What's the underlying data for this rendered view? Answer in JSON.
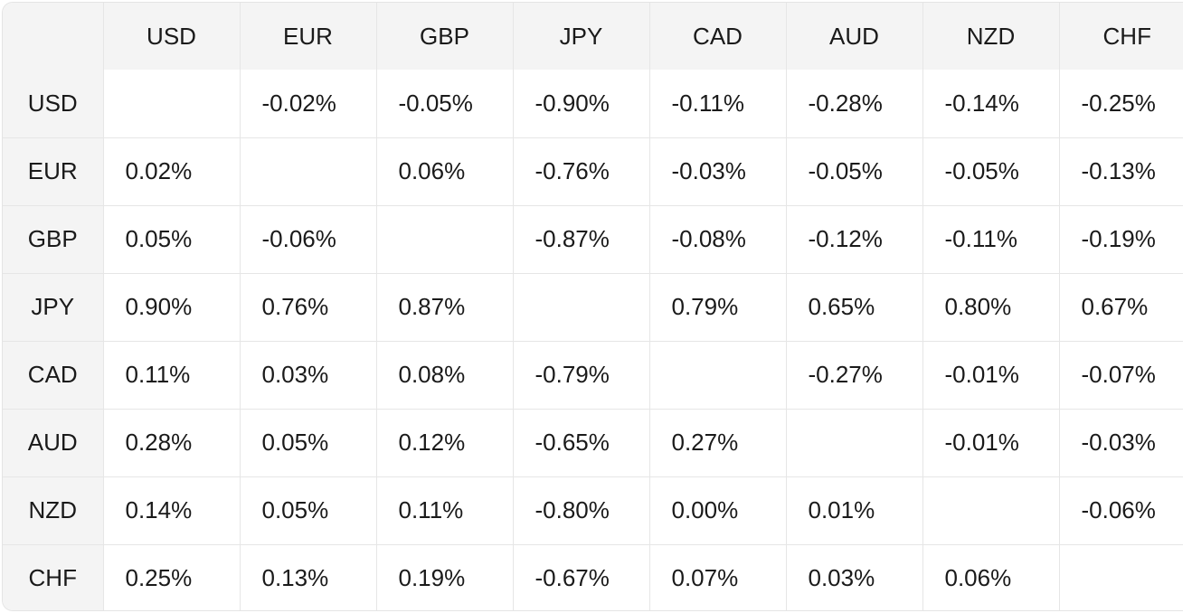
{
  "chart_data": {
    "type": "heatmap",
    "corner_label": "",
    "columns": [
      "USD",
      "EUR",
      "GBP",
      "JPY",
      "CAD",
      "AUD",
      "NZD",
      "CHF"
    ],
    "rows": [
      {
        "label": "USD",
        "cells": [
          "",
          "-0.02%",
          "-0.05%",
          "-0.90%",
          "-0.11%",
          "-0.28%",
          "-0.14%",
          "-0.25%"
        ]
      },
      {
        "label": "EUR",
        "cells": [
          "0.02%",
          "",
          "0.06%",
          "-0.76%",
          "-0.03%",
          "-0.05%",
          "-0.05%",
          "-0.13%"
        ]
      },
      {
        "label": "GBP",
        "cells": [
          "0.05%",
          "-0.06%",
          "",
          "-0.87%",
          "-0.08%",
          "-0.12%",
          "-0.11%",
          "-0.19%"
        ]
      },
      {
        "label": "JPY",
        "cells": [
          "0.90%",
          "0.76%",
          "0.87%",
          "",
          "0.79%",
          "0.65%",
          "0.80%",
          "0.67%"
        ]
      },
      {
        "label": "CAD",
        "cells": [
          "0.11%",
          "0.03%",
          "0.08%",
          "-0.79%",
          "",
          "-0.27%",
          "-0.01%",
          "-0.07%"
        ]
      },
      {
        "label": "AUD",
        "cells": [
          "0.28%",
          "0.05%",
          "0.12%",
          "-0.65%",
          "0.27%",
          "",
          "-0.01%",
          "-0.03%"
        ]
      },
      {
        "label": "NZD",
        "cells": [
          "0.14%",
          "0.05%",
          "0.11%",
          "-0.80%",
          "0.00%",
          "0.01%",
          "",
          "-0.06%"
        ]
      },
      {
        "label": "CHF",
        "cells": [
          "0.25%",
          "0.13%",
          "0.19%",
          "-0.67%",
          "0.07%",
          "0.03%",
          "0.06%",
          ""
        ]
      }
    ]
  },
  "colors": {
    "header_background": "#f4f4f4",
    "cell_background": "#ffffff",
    "grid_line": "#e6e6e6",
    "text": "#1a1a1a"
  }
}
